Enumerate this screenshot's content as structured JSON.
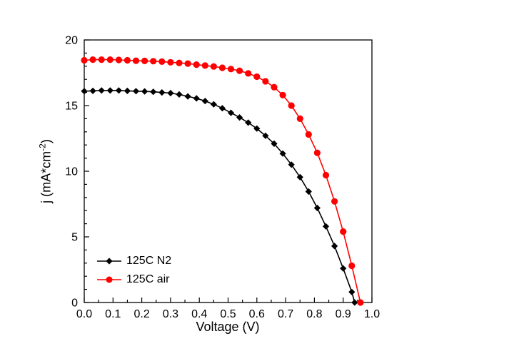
{
  "figure": {
    "background": "#ffffff"
  },
  "chart_data": {
    "type": "line",
    "title": "",
    "xlabel": "Voltage (V)",
    "ylabel": "j (mA*cm^-2)",
    "ylabel_parts": {
      "pre": "j (mA*cm",
      "sup": "-2",
      "post": ")"
    },
    "xlim": [
      0.0,
      1.0
    ],
    "ylim": [
      0,
      20
    ],
    "xticks": [
      0.0,
      0.1,
      0.2,
      0.3,
      0.4,
      0.5,
      0.6,
      0.7,
      0.8,
      0.9,
      1.0
    ],
    "xtick_labels": [
      "0.0",
      "0.1",
      "0.2",
      "0.3",
      "0.4",
      "0.5",
      "0.6",
      "0.7",
      "0.8",
      "0.9",
      "1.0"
    ],
    "yticks": [
      0,
      5,
      10,
      15,
      20
    ],
    "ytick_labels": [
      "0",
      "5",
      "10",
      "15",
      "20"
    ],
    "x_minor_step": 0.05,
    "y_minor_step": 1,
    "grid": false,
    "legend_position": "lower-left",
    "series": [
      {
        "name": "125C N2",
        "color": "#000000",
        "marker": "diamond",
        "x": [
          0.0,
          0.03,
          0.06,
          0.09,
          0.12,
          0.15,
          0.18,
          0.21,
          0.24,
          0.27,
          0.3,
          0.33,
          0.36,
          0.39,
          0.42,
          0.45,
          0.48,
          0.51,
          0.54,
          0.57,
          0.6,
          0.63,
          0.66,
          0.69,
          0.72,
          0.75,
          0.78,
          0.81,
          0.84,
          0.87,
          0.9,
          0.93,
          0.94
        ],
        "y": [
          16.1,
          16.12,
          16.15,
          16.15,
          16.15,
          16.12,
          16.1,
          16.08,
          16.05,
          16.0,
          15.95,
          15.85,
          15.7,
          15.55,
          15.35,
          15.1,
          14.8,
          14.45,
          14.1,
          13.7,
          13.25,
          12.7,
          12.1,
          11.35,
          10.5,
          9.55,
          8.45,
          7.2,
          5.8,
          4.3,
          2.6,
          0.8,
          0.0
        ]
      },
      {
        "name": "125C air",
        "color": "#ff0000",
        "marker": "circle",
        "x": [
          0.0,
          0.03,
          0.06,
          0.09,
          0.12,
          0.15,
          0.18,
          0.21,
          0.24,
          0.27,
          0.3,
          0.33,
          0.36,
          0.39,
          0.42,
          0.45,
          0.48,
          0.51,
          0.54,
          0.57,
          0.6,
          0.63,
          0.66,
          0.69,
          0.72,
          0.75,
          0.78,
          0.81,
          0.84,
          0.87,
          0.9,
          0.93,
          0.96
        ],
        "y": [
          18.45,
          18.5,
          18.5,
          18.5,
          18.48,
          18.45,
          18.42,
          18.4,
          18.38,
          18.35,
          18.3,
          18.25,
          18.2,
          18.12,
          18.05,
          17.98,
          17.88,
          17.78,
          17.65,
          17.45,
          17.2,
          16.85,
          16.4,
          15.8,
          15.0,
          14.0,
          12.8,
          11.4,
          9.7,
          7.7,
          5.4,
          2.8,
          0.0
        ]
      }
    ]
  }
}
